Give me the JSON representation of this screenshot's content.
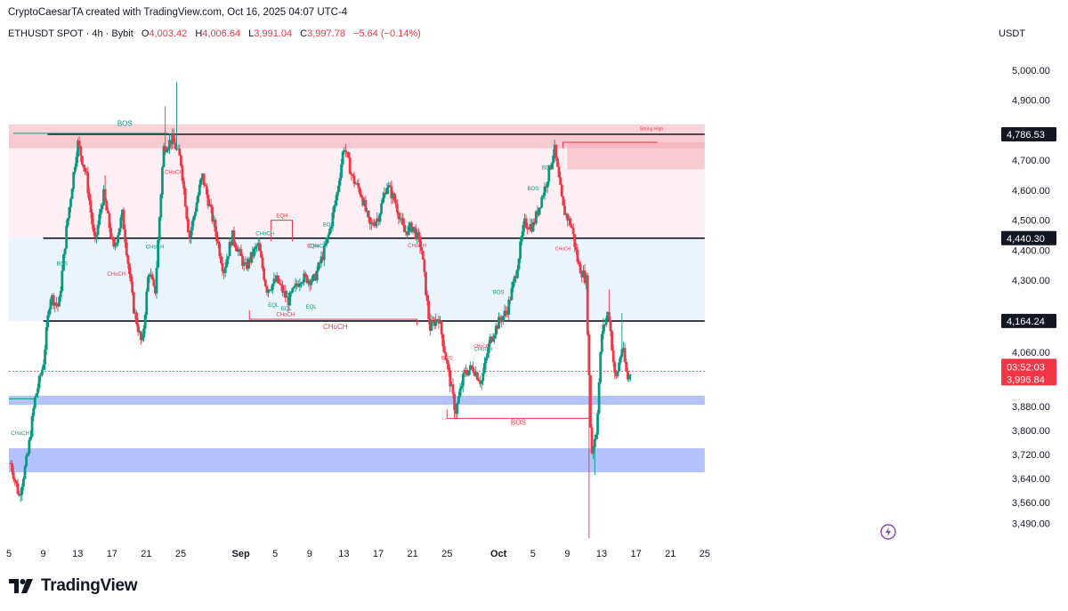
{
  "header": {
    "attribution": "CryptoCaesarTA created with TradingView.com, Oct 16, 2025 04:07 UTC-4",
    "symbol": "ETHUSDT SPOT · 4h · Bybit",
    "open_label": "O",
    "open_value": "4,003.42",
    "high_label": "H",
    "high_value": "4,006.64",
    "low_label": "L",
    "low_value": "3,991.04",
    "close_label": "C",
    "close_value": "3,997.78",
    "change": "−5.64 (−0.14%)"
  },
  "currency": "USDT",
  "brand": {
    "name": "TradingView"
  },
  "colors": {
    "up": "#089981",
    "down": "#f23645",
    "demand": "#4a6cf7",
    "supply": "#f4a8b4",
    "premium": "#fce8ee",
    "discount": "#e9f2fd",
    "line": "#131722"
  },
  "chart_data": {
    "type": "candlestick",
    "price_axis": {
      "unit": "USDT",
      "range": [
        3420,
        5080
      ],
      "ticks": [
        {
          "value": 5000,
          "label": "5,000.00"
        },
        {
          "value": 4900,
          "label": "4,900.00"
        },
        {
          "value": 4700,
          "label": "4,700.00"
        },
        {
          "value": 4600,
          "label": "4,600.00"
        },
        {
          "value": 4500,
          "label": "4,500.00"
        },
        {
          "value": 4400,
          "label": "4,400.00"
        },
        {
          "value": 4300,
          "label": "4,300.00"
        },
        {
          "value": 4060,
          "label": "4,060.00"
        },
        {
          "value": 3880,
          "label": "3,880.00"
        },
        {
          "value": 3800,
          "label": "3,800.00"
        },
        {
          "value": 3720,
          "label": "3,720.00"
        },
        {
          "value": 3640,
          "label": "3,640.00"
        },
        {
          "value": 3560,
          "label": "3,560.00"
        },
        {
          "value": 3490,
          "label": "3,490.00"
        }
      ]
    },
    "time_axis": {
      "range": [
        5,
        120
      ],
      "ticks": [
        {
          "t": 5,
          "label": "5"
        },
        {
          "t": 9,
          "label": "9"
        },
        {
          "t": 13,
          "label": "13"
        },
        {
          "t": 17,
          "label": "17"
        },
        {
          "t": 21,
          "label": "21"
        },
        {
          "t": 25,
          "label": "25"
        },
        {
          "t": 32,
          "label": "Sep"
        },
        {
          "t": 36,
          "label": "5"
        },
        {
          "t": 40,
          "label": "9"
        },
        {
          "t": 44,
          "label": "13"
        },
        {
          "t": 48,
          "label": "17"
        },
        {
          "t": 52,
          "label": "21"
        },
        {
          "t": 56,
          "label": "25"
        },
        {
          "t": 62,
          "label": "Oct"
        },
        {
          "t": 66,
          "label": "5"
        },
        {
          "t": 70,
          "label": "9"
        },
        {
          "t": 74,
          "label": "13"
        },
        {
          "t": 78,
          "label": "17"
        },
        {
          "t": 82,
          "label": "21"
        },
        {
          "t": 86,
          "label": "25"
        }
      ]
    },
    "key_levels": [
      {
        "value": 4786.53,
        "label": "4,786.53"
      },
      {
        "value": 4440.3,
        "label": "4,440.30"
      },
      {
        "value": 4164.24,
        "label": "4,164.24"
      }
    ],
    "current": {
      "value": 3996.84,
      "label": "3,996.84",
      "countdown": "03:52:03"
    },
    "zones": [
      {
        "type": "supply",
        "from_t": 5,
        "to_t": 86,
        "low": 4740,
        "high": 4820
      },
      {
        "type": "supply",
        "from_t": 70,
        "to_t": 86,
        "low": 4670,
        "high": 4760
      },
      {
        "type": "demand",
        "from_t": 5,
        "to_t": 86,
        "low": 3885,
        "high": 3915
      },
      {
        "type": "demand",
        "from_t": 5,
        "to_t": 86,
        "low": 3660,
        "high": 3740
      }
    ],
    "anchors": [
      {
        "t": 5.2,
        "v": 3690
      },
      {
        "t": 6.2,
        "v": 3580
      },
      {
        "t": 7.2,
        "v": 3720
      },
      {
        "t": 8.0,
        "v": 3900
      },
      {
        "t": 9.0,
        "v": 4020
      },
      {
        "t": 9.8,
        "v": 4250
      },
      {
        "t": 10.8,
        "v": 4210
      },
      {
        "t": 11.7,
        "v": 4470
      },
      {
        "t": 13.0,
        "v": 4760
      },
      {
        "t": 14.0,
        "v": 4650
      },
      {
        "t": 15.0,
        "v": 4420
      },
      {
        "t": 16.0,
        "v": 4590
      },
      {
        "t": 17.2,
        "v": 4400
      },
      {
        "t": 18.2,
        "v": 4520
      },
      {
        "t": 19.5,
        "v": 4210
      },
      {
        "t": 20.5,
        "v": 4080
      },
      {
        "t": 21.3,
        "v": 4340
      },
      {
        "t": 22.0,
        "v": 4250
      },
      {
        "t": 23.0,
        "v": 4740
      },
      {
        "t": 24.0,
        "v": 4770
      },
      {
        "t": 25.0,
        "v": 4700
      },
      {
        "t": 26.0,
        "v": 4440
      },
      {
        "t": 27.5,
        "v": 4650
      },
      {
        "t": 29.0,
        "v": 4470
      },
      {
        "t": 30.0,
        "v": 4330
      },
      {
        "t": 31.0,
        "v": 4450
      },
      {
        "t": 32.5,
        "v": 4340
      },
      {
        "t": 34.0,
        "v": 4420
      },
      {
        "t": 35.0,
        "v": 4270
      },
      {
        "t": 36.2,
        "v": 4300
      },
      {
        "t": 37.5,
        "v": 4230
      },
      {
        "t": 39.0,
        "v": 4310
      },
      {
        "t": 40.5,
        "v": 4300
      },
      {
        "t": 41.5,
        "v": 4380
      },
      {
        "t": 42.3,
        "v": 4460
      },
      {
        "t": 43.2,
        "v": 4590
      },
      {
        "t": 44.0,
        "v": 4750
      },
      {
        "t": 45.0,
        "v": 4640
      },
      {
        "t": 46.0,
        "v": 4590
      },
      {
        "t": 47.0,
        "v": 4480
      },
      {
        "t": 48.0,
        "v": 4510
      },
      {
        "t": 49.0,
        "v": 4620
      },
      {
        "t": 50.0,
        "v": 4560
      },
      {
        "t": 51.0,
        "v": 4460
      },
      {
        "t": 52.0,
        "v": 4480
      },
      {
        "t": 53.0,
        "v": 4410
      },
      {
        "t": 54.0,
        "v": 4140
      },
      {
        "t": 55.0,
        "v": 4180
      },
      {
        "t": 56.0,
        "v": 4020
      },
      {
        "t": 57.0,
        "v": 3860
      },
      {
        "t": 58.0,
        "v": 3990
      },
      {
        "t": 59.0,
        "v": 4010
      },
      {
        "t": 60.0,
        "v": 3960
      },
      {
        "t": 61.0,
        "v": 4100
      },
      {
        "t": 62.0,
        "v": 4160
      },
      {
        "t": 63.0,
        "v": 4200
      },
      {
        "t": 64.0,
        "v": 4320
      },
      {
        "t": 65.0,
        "v": 4490
      },
      {
        "t": 66.0,
        "v": 4480
      },
      {
        "t": 67.5,
        "v": 4620
      },
      {
        "t": 68.5,
        "v": 4740
      },
      {
        "t": 69.5,
        "v": 4540
      },
      {
        "t": 70.5,
        "v": 4480
      },
      {
        "t": 71.3,
        "v": 4350
      },
      {
        "t": 72.2,
        "v": 4300
      },
      {
        "t": 72.8,
        "v": 3720
      },
      {
        "t": 73.4,
        "v": 3800
      },
      {
        "t": 74.0,
        "v": 4120
      },
      {
        "t": 74.8,
        "v": 4200
      },
      {
        "t": 75.6,
        "v": 3960
      },
      {
        "t": 76.4,
        "v": 4080
      },
      {
        "t": 77.0,
        "v": 3970
      },
      {
        "t": 77.4,
        "v": 3995
      }
    ],
    "spikes": [
      {
        "t": 23.2,
        "high": 4880
      },
      {
        "t": 24.5,
        "high": 4960
      },
      {
        "t": 72.6,
        "low": 3440
      },
      {
        "t": 73.2,
        "low": 3650
      },
      {
        "t": 74.8,
        "high": 4270
      },
      {
        "t": 76.4,
        "high": 4190
      },
      {
        "t": 16.2,
        "high": 4650
      },
      {
        "t": 56.8,
        "low": 3840
      }
    ],
    "annotations": [
      {
        "text": "BOS",
        "t": 18.5,
        "v": 4815,
        "color": "up",
        "size": 8
      },
      {
        "text": "CHoCH",
        "t": 24.2,
        "v": 4655,
        "color": "down",
        "size": 6
      },
      {
        "text": "CHoCH",
        "t": 22.0,
        "v": 4405,
        "color": "up",
        "size": 6
      },
      {
        "text": "CHoCH",
        "t": 17.5,
        "v": 4315,
        "color": "down",
        "size": 6
      },
      {
        "text": "BOS",
        "t": 11.2,
        "v": 4350,
        "color": "up",
        "size": 6
      },
      {
        "text": "CHoCH",
        "t": 6.3,
        "v": 3785,
        "color": "up",
        "size": 6
      },
      {
        "text": "EQH",
        "t": 36.8,
        "v": 4510,
        "color": "down",
        "size": 6
      },
      {
        "text": "CHoCH",
        "t": 34.8,
        "v": 4450,
        "color": "up",
        "size": 6
      },
      {
        "text": "EQH",
        "t": 40.4,
        "v": 4408,
        "color": "down",
        "size": 6
      },
      {
        "text": "CHoCH",
        "t": 41.0,
        "v": 4408,
        "color": "up",
        "size": 6
      },
      {
        "text": "EQL",
        "t": 35.8,
        "v": 4212,
        "color": "up",
        "size": 6
      },
      {
        "text": "EQL",
        "t": 37.3,
        "v": 4200,
        "color": "up",
        "size": 6
      },
      {
        "text": "CHoCH",
        "t": 37.2,
        "v": 4180,
        "color": "down",
        "size": 6
      },
      {
        "text": "EQL",
        "t": 40.2,
        "v": 4205,
        "color": "up",
        "size": 6
      },
      {
        "text": "BOS",
        "t": 42.2,
        "v": 4480,
        "color": "up",
        "size": 6
      },
      {
        "text": "CHoCH",
        "t": 52.5,
        "v": 4410,
        "color": "down",
        "size": 6
      },
      {
        "text": "CHoCH",
        "t": 43.0,
        "v": 4138,
        "color": "down",
        "size": 8
      },
      {
        "text": "BOS",
        "t": 62.0,
        "v": 4255,
        "color": "up",
        "size": 6
      },
      {
        "text": "BOS",
        "t": 66.0,
        "v": 4600,
        "color": "up",
        "size": 6
      },
      {
        "text": "BOS",
        "t": 67.7,
        "v": 4670,
        "color": "up",
        "size": 6
      },
      {
        "text": "BOS",
        "t": 56.0,
        "v": 4035,
        "color": "down",
        "size": 6
      },
      {
        "text": "CHoCH",
        "t": 60.2,
        "v": 4065,
        "color": "up",
        "size": 6
      },
      {
        "text": "CHoCH",
        "t": 60.0,
        "v": 4075,
        "color": "down",
        "size": 5
      },
      {
        "text": "CHoCH",
        "t": 69.5,
        "v": 4400,
        "color": "down",
        "size": 5
      },
      {
        "text": "BOS",
        "t": 64.3,
        "v": 3818,
        "color": "down",
        "size": 8
      },
      {
        "text": "Strong High",
        "t": 79.8,
        "v": 4800,
        "color": "down",
        "size": 5
      }
    ]
  }
}
